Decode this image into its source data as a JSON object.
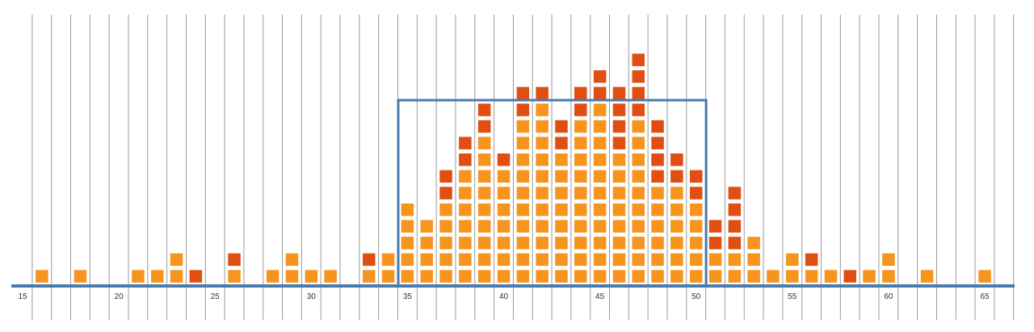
{
  "chart_data": {
    "type": "dot-plot",
    "title": "",
    "xlabel": "",
    "ylabel": "",
    "xlim": [
      15,
      66
    ],
    "x_ticks": [
      "15",
      "20",
      "25",
      "30",
      "35",
      "40",
      "45",
      "50",
      "55",
      "60",
      "65"
    ],
    "grid": "vertical lines at every integer",
    "highlight_range": [
      34.5,
      50.5
    ],
    "legend": "none",
    "colors": {
      "light": "#F7941D",
      "dark": "#E04E12",
      "axis": "#4A7BAD",
      "grid": "#999999"
    },
    "columns": [
      {
        "x": 16,
        "stack": [
          "light"
        ]
      },
      {
        "x": 18,
        "stack": [
          "light"
        ]
      },
      {
        "x": 21,
        "stack": [
          "light"
        ]
      },
      {
        "x": 22,
        "stack": [
          "light"
        ]
      },
      {
        "x": 23,
        "stack": [
          "light",
          "light"
        ]
      },
      {
        "x": 24,
        "stack": [
          "dark"
        ]
      },
      {
        "x": 26,
        "stack": [
          "light",
          "dark"
        ]
      },
      {
        "x": 28,
        "stack": [
          "light"
        ]
      },
      {
        "x": 29,
        "stack": [
          "light",
          "light"
        ]
      },
      {
        "x": 30,
        "stack": [
          "light"
        ]
      },
      {
        "x": 31,
        "stack": [
          "light"
        ]
      },
      {
        "x": 33,
        "stack": [
          "light",
          "dark"
        ]
      },
      {
        "x": 34,
        "stack": [
          "light",
          "light"
        ]
      },
      {
        "x": 35,
        "stack": [
          "light",
          "light",
          "light",
          "light",
          "light"
        ]
      },
      {
        "x": 36,
        "stack": [
          "light",
          "light",
          "light",
          "light"
        ]
      },
      {
        "x": 37,
        "stack": [
          "light",
          "light",
          "light",
          "light",
          "light",
          "dark",
          "dark"
        ]
      },
      {
        "x": 38,
        "stack": [
          "light",
          "light",
          "light",
          "light",
          "light",
          "light",
          "light",
          "dark",
          "dark"
        ]
      },
      {
        "x": 39,
        "stack": [
          "light",
          "light",
          "light",
          "light",
          "light",
          "light",
          "light",
          "light",
          "light",
          "dark",
          "dark"
        ]
      },
      {
        "x": 40,
        "stack": [
          "light",
          "light",
          "light",
          "light",
          "light",
          "light",
          "light",
          "dark"
        ]
      },
      {
        "x": 41,
        "stack": [
          "light",
          "light",
          "light",
          "light",
          "light",
          "light",
          "light",
          "light",
          "light",
          "light",
          "dark",
          "dark"
        ]
      },
      {
        "x": 42,
        "stack": [
          "light",
          "light",
          "light",
          "light",
          "light",
          "light",
          "light",
          "light",
          "light",
          "light",
          "light",
          "dark"
        ]
      },
      {
        "x": 43,
        "stack": [
          "light",
          "light",
          "light",
          "light",
          "light",
          "light",
          "light",
          "light",
          "dark",
          "dark"
        ]
      },
      {
        "x": 44,
        "stack": [
          "light",
          "light",
          "light",
          "light",
          "light",
          "light",
          "light",
          "light",
          "light",
          "light",
          "dark",
          "dark"
        ]
      },
      {
        "x": 45,
        "stack": [
          "light",
          "light",
          "light",
          "light",
          "light",
          "light",
          "light",
          "light",
          "light",
          "light",
          "light",
          "dark",
          "dark"
        ]
      },
      {
        "x": 46,
        "stack": [
          "light",
          "light",
          "light",
          "light",
          "light",
          "light",
          "light",
          "light",
          "dark",
          "dark",
          "dark",
          "dark"
        ]
      },
      {
        "x": 47,
        "stack": [
          "light",
          "light",
          "light",
          "light",
          "light",
          "light",
          "light",
          "light",
          "light",
          "light",
          "dark",
          "dark",
          "dark",
          "dark"
        ]
      },
      {
        "x": 48,
        "stack": [
          "light",
          "light",
          "light",
          "light",
          "light",
          "light",
          "dark",
          "dark",
          "dark",
          "dark"
        ]
      },
      {
        "x": 49,
        "stack": [
          "light",
          "light",
          "light",
          "light",
          "light",
          "light",
          "dark",
          "dark"
        ]
      },
      {
        "x": 50,
        "stack": [
          "light",
          "light",
          "light",
          "light",
          "light",
          "dark",
          "dark"
        ]
      },
      {
        "x": 51,
        "stack": [
          "light",
          "light",
          "dark",
          "dark"
        ]
      },
      {
        "x": 52,
        "stack": [
          "light",
          "light",
          "dark",
          "dark",
          "dark",
          "dark"
        ]
      },
      {
        "x": 53,
        "stack": [
          "light",
          "light",
          "light"
        ]
      },
      {
        "x": 54,
        "stack": [
          "light"
        ]
      },
      {
        "x": 55,
        "stack": [
          "light",
          "light"
        ]
      },
      {
        "x": 56,
        "stack": [
          "light",
          "dark"
        ]
      },
      {
        "x": 57,
        "stack": [
          "light"
        ]
      },
      {
        "x": 58,
        "stack": [
          "dark"
        ]
      },
      {
        "x": 59,
        "stack": [
          "light"
        ]
      },
      {
        "x": 60,
        "stack": [
          "light",
          "light"
        ]
      },
      {
        "x": 62,
        "stack": [
          "light"
        ]
      },
      {
        "x": 65,
        "stack": [
          "light"
        ]
      }
    ]
  }
}
